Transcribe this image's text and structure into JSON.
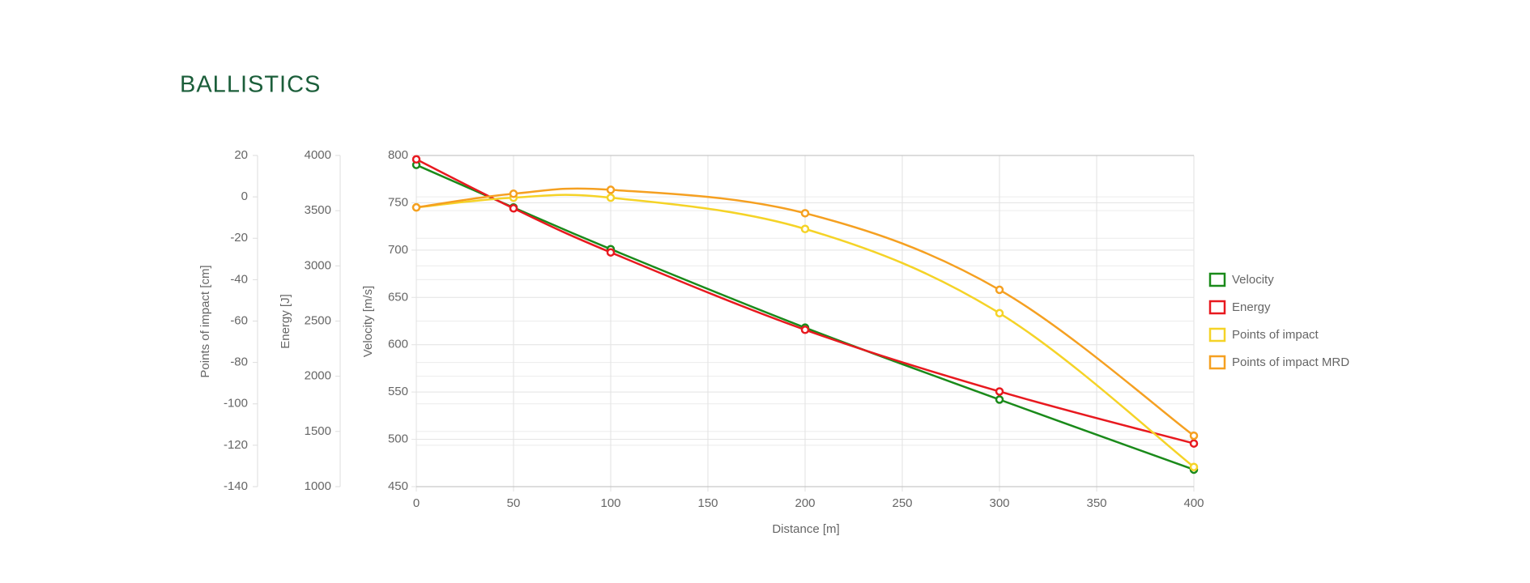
{
  "chart_data": {
    "type": "line",
    "title": "BALLISTICS",
    "x_label": "Distance [m]",
    "y_label": "Velocity [m/s]",
    "y2_label": "Energy [J]",
    "y3_label": "Points of impact [cm]",
    "x": [
      0,
      50,
      100,
      200,
      300,
      400
    ],
    "xlim": [
      0,
      400
    ],
    "xticks": [
      0,
      50,
      100,
      150,
      200,
      250,
      300,
      350,
      400
    ],
    "ylim": [
      450,
      800
    ],
    "yticks": [
      450,
      500,
      550,
      600,
      650,
      700,
      750,
      800
    ],
    "y2lim": [
      1000,
      4000
    ],
    "y2ticks": [
      1000,
      1500,
      2000,
      2500,
      3000,
      3500,
      4000
    ],
    "y3lim": [
      -140,
      20
    ],
    "y3ticks": [
      -140,
      -120,
      -100,
      -80,
      -60,
      -40,
      -20,
      0,
      20
    ],
    "grid": true,
    "legend": "right",
    "series": [
      {
        "name": "Velocity",
        "color": "#1a8a1a",
        "axis": "y",
        "values": [
          790,
          745,
          701,
          618,
          542,
          468
        ]
      },
      {
        "name": "Energy",
        "color": "#e8191f",
        "axis": "y2",
        "values": [
          3965,
          3521,
          3122,
          2421,
          1862,
          1391
        ]
      },
      {
        "name": "Points of impact",
        "color": "#f5d327",
        "axis": "y3",
        "values": [
          -5.1,
          -0.4,
          -0.4,
          -15.5,
          -56.2,
          -130.5
        ]
      },
      {
        "name": "Points of impact MRD",
        "color": "#f5a021",
        "axis": "y3",
        "values": [
          -5.1,
          1.5,
          3.4,
          -7.9,
          -44.9,
          -115.4
        ]
      }
    ]
  }
}
